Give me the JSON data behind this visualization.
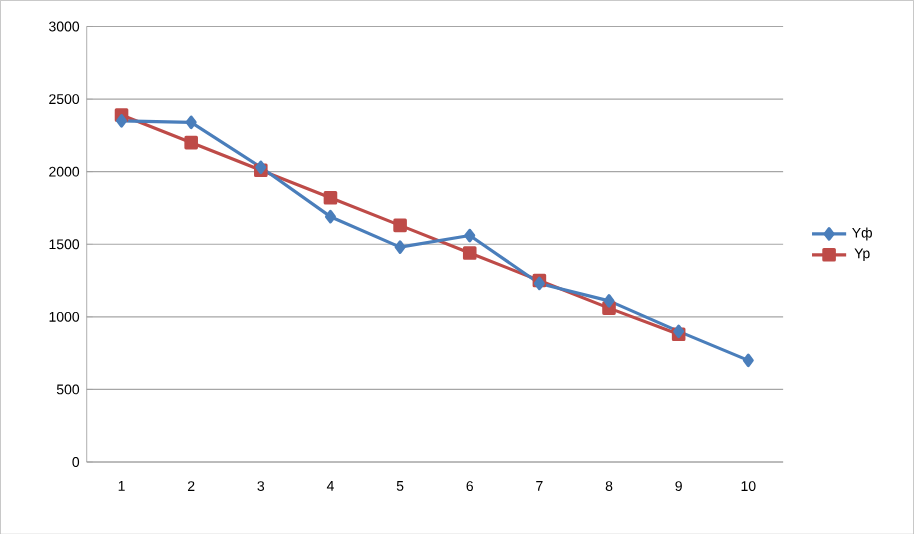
{
  "chart_data": {
    "type": "line",
    "categories": [
      "1",
      "2",
      "3",
      "4",
      "5",
      "6",
      "7",
      "8",
      "9",
      "10"
    ],
    "series": [
      {
        "name": "Yф",
        "color": "#4a7ebb",
        "marker": "diamond",
        "values": [
          2350,
          2340,
          2030,
          1690,
          1480,
          1560,
          1230,
          1110,
          900,
          700
        ]
      },
      {
        "name": "Yp",
        "color": "#be4b48",
        "marker": "square",
        "values": [
          2390,
          2200,
          2010,
          1820,
          1630,
          1440,
          1250,
          1060,
          880,
          null
        ]
      }
    ],
    "ylim": [
      0,
      3000
    ],
    "yticks": [
      0,
      500,
      1000,
      1500,
      2000,
      2500,
      3000
    ],
    "grid": "y",
    "legend": "right",
    "line_style": "solid"
  }
}
